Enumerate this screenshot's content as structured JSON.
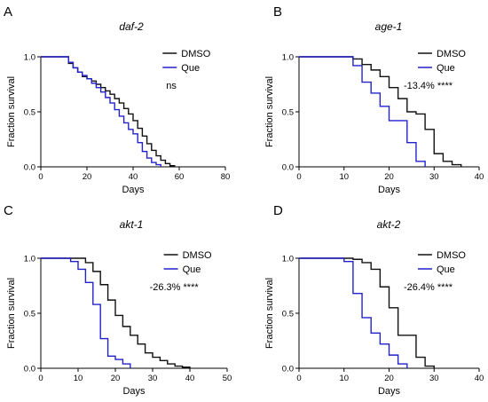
{
  "colors": {
    "dmso": "#111111",
    "que": "#2222cc",
    "axis": "#000000"
  },
  "chart_data": [
    {
      "type": "line",
      "step": true,
      "panel_letter": "A",
      "title": "daf-2",
      "xlabel": "Days",
      "ylabel": "Fraction survival",
      "xlim": [
        0,
        80
      ],
      "ylim": [
        0,
        1.0
      ],
      "xticks": [
        "0",
        "20",
        "40",
        "60",
        "80"
      ],
      "yticks": [
        "0.0",
        "0.5",
        "1.0"
      ],
      "legend": "top-right",
      "grid": false,
      "annotation": "ns",
      "series": [
        {
          "name": "DMSO",
          "color": "#111111",
          "x": [
            0,
            10,
            12,
            14,
            16,
            18,
            20,
            22,
            24,
            26,
            28,
            30,
            32,
            34,
            36,
            38,
            40,
            42,
            44,
            46,
            48,
            50,
            52,
            54,
            56,
            58
          ],
          "y": [
            1.0,
            1.0,
            0.94,
            0.9,
            0.86,
            0.82,
            0.8,
            0.78,
            0.75,
            0.72,
            0.69,
            0.66,
            0.62,
            0.58,
            0.53,
            0.48,
            0.42,
            0.35,
            0.28,
            0.21,
            0.15,
            0.1,
            0.06,
            0.03,
            0.01,
            0.0
          ]
        },
        {
          "name": "Que",
          "color": "#2222cc",
          "x": [
            0,
            10,
            12,
            14,
            16,
            18,
            20,
            22,
            24,
            26,
            28,
            30,
            32,
            34,
            36,
            38,
            40,
            42,
            44,
            46,
            48,
            50,
            52
          ],
          "y": [
            1.0,
            1.0,
            0.95,
            0.9,
            0.86,
            0.83,
            0.8,
            0.76,
            0.72,
            0.68,
            0.63,
            0.58,
            0.52,
            0.46,
            0.4,
            0.34,
            0.3,
            0.22,
            0.14,
            0.08,
            0.04,
            0.02,
            0.0
          ]
        }
      ]
    },
    {
      "type": "line",
      "step": true,
      "panel_letter": "B",
      "title": "age-1",
      "xlabel": "Days",
      "ylabel": "Fraction survival",
      "xlim": [
        0,
        40
      ],
      "ylim": [
        0,
        1.0
      ],
      "xticks": [
        "0",
        "10",
        "20",
        "30",
        "40"
      ],
      "yticks": [
        "0.0",
        "0.5",
        "1.0"
      ],
      "legend": "top-right",
      "grid": false,
      "annotation": "-13.4% ****",
      "series": [
        {
          "name": "DMSO",
          "color": "#111111",
          "x": [
            0,
            12,
            14,
            16,
            18,
            20,
            22,
            24,
            26,
            28,
            30,
            32,
            34,
            36
          ],
          "y": [
            1.0,
            0.98,
            0.93,
            0.88,
            0.82,
            0.72,
            0.62,
            0.5,
            0.48,
            0.34,
            0.12,
            0.05,
            0.02,
            0.0
          ]
        },
        {
          "name": "Que",
          "color": "#2222cc",
          "x": [
            0,
            12,
            14,
            16,
            18,
            20,
            22,
            24,
            26,
            28
          ],
          "y": [
            1.0,
            0.92,
            0.77,
            0.67,
            0.55,
            0.42,
            0.42,
            0.22,
            0.05,
            0.0
          ]
        }
      ]
    },
    {
      "type": "line",
      "step": true,
      "panel_letter": "C",
      "title": "akt-1",
      "xlabel": "Days",
      "ylabel": "Fraction survival",
      "xlim": [
        0,
        50
      ],
      "ylim": [
        0,
        1.0
      ],
      "xticks": [
        "0",
        "10",
        "20",
        "30",
        "40",
        "50"
      ],
      "yticks": [
        "0.0",
        "0.5",
        "1.0"
      ],
      "legend": "top-right",
      "grid": false,
      "annotation": "-26.3% ****",
      "series": [
        {
          "name": "DMSO",
          "color": "#111111",
          "x": [
            0,
            12,
            14,
            16,
            18,
            20,
            22,
            24,
            26,
            28,
            30,
            32,
            34,
            36,
            38,
            40
          ],
          "y": [
            1.0,
            0.96,
            0.88,
            0.76,
            0.62,
            0.48,
            0.38,
            0.3,
            0.22,
            0.14,
            0.1,
            0.07,
            0.04,
            0.02,
            0.01,
            0.0
          ]
        },
        {
          "name": "Que",
          "color": "#2222cc",
          "x": [
            0,
            8,
            10,
            12,
            14,
            16,
            18,
            20,
            22,
            24
          ],
          "y": [
            1.0,
            0.97,
            0.9,
            0.78,
            0.58,
            0.27,
            0.11,
            0.08,
            0.04,
            0.0
          ]
        }
      ]
    },
    {
      "type": "line",
      "step": true,
      "panel_letter": "D",
      "title": "akt-2",
      "xlabel": "Days",
      "ylabel": "Fraction survival",
      "xlim": [
        0,
        40
      ],
      "ylim": [
        0,
        1.0
      ],
      "xticks": [
        "0",
        "10",
        "20",
        "30",
        "40"
      ],
      "yticks": [
        "0.0",
        "0.5",
        "1.0"
      ],
      "legend": "top-right",
      "grid": false,
      "annotation": "-26.4% ****",
      "series": [
        {
          "name": "DMSO",
          "color": "#111111",
          "x": [
            0,
            12,
            14,
            16,
            18,
            20,
            22,
            24,
            26,
            28,
            30
          ],
          "y": [
            1.0,
            0.99,
            0.96,
            0.9,
            0.74,
            0.55,
            0.3,
            0.3,
            0.1,
            0.02,
            0.0
          ]
        },
        {
          "name": "Que",
          "color": "#2222cc",
          "x": [
            0,
            10,
            12,
            14,
            16,
            18,
            20,
            22,
            24
          ],
          "y": [
            1.0,
            0.97,
            0.68,
            0.46,
            0.32,
            0.22,
            0.12,
            0.04,
            0.0
          ]
        }
      ]
    }
  ]
}
